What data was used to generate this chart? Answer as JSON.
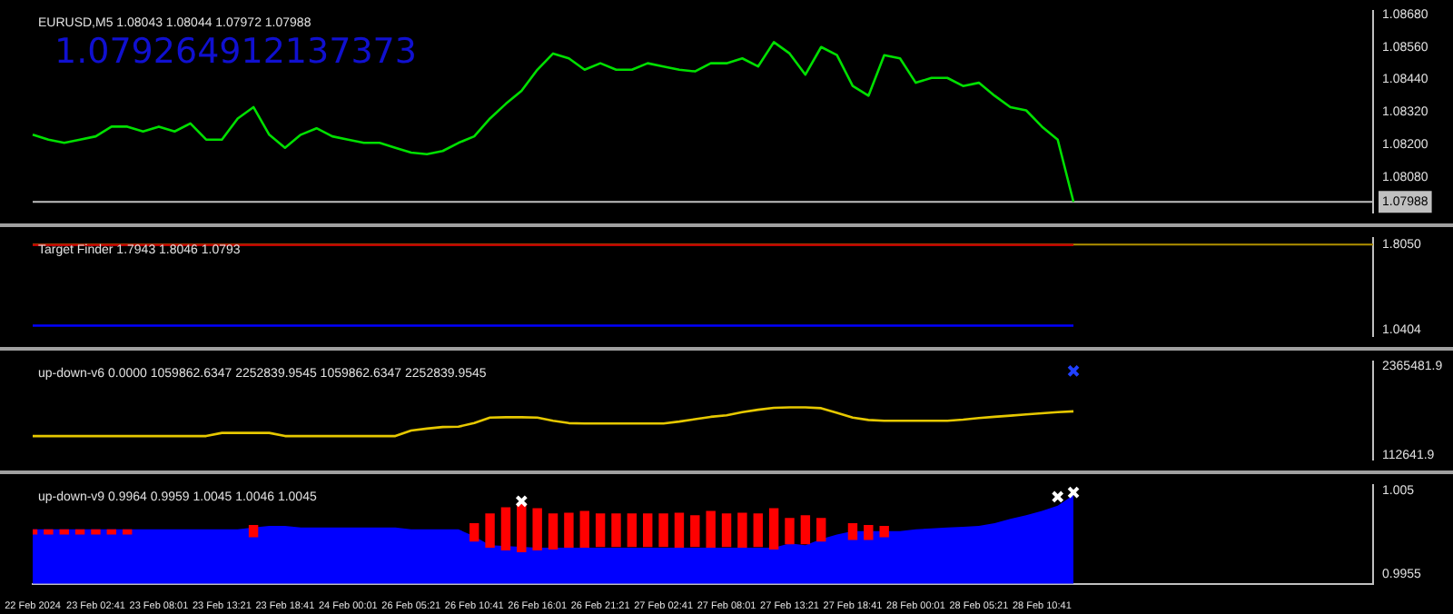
{
  "chart_data": [
    {
      "type": "line",
      "title": "EURUSD,M5 1.08043 1.08044 1.07972 1.07988",
      "annotations": [
        "1.079264912137373"
      ],
      "tick_labels": "y",
      "categories": [
        null,
        null,
        null,
        null,
        null,
        null,
        null,
        null,
        null,
        null,
        null,
        null,
        null,
        null,
        null,
        null,
        null,
        null,
        null,
        null,
        null,
        null,
        null,
        null,
        null,
        null,
        null,
        null,
        null,
        null,
        null,
        null,
        null,
        null,
        null,
        null,
        null,
        null,
        null,
        null,
        null,
        null,
        null,
        null,
        null,
        null,
        null,
        null,
        null,
        null,
        null,
        null,
        null,
        null,
        null,
        null,
        null,
        null,
        null,
        null,
        null,
        null,
        null,
        null,
        null,
        null,
        null,
        null,
        null,
        null,
        null,
        null,
        null,
        null,
        null,
        null,
        null,
        null,
        null,
        null,
        null,
        null,
        null,
        null,
        null,
        null
      ],
      "series": [
        {
          "color": "#00e000",
          "values": [
            1.08236,
            1.08218,
            1.08206,
            1.08218,
            1.0823,
            1.08266,
            1.08266,
            1.08248,
            1.08266,
            1.08248,
            1.08278,
            1.08218,
            1.08218,
            1.08296,
            1.08338,
            1.08236,
            1.08188,
            1.08236,
            1.0826,
            1.0823,
            1.08218,
            1.08206,
            1.08206,
            1.08188,
            1.0817,
            1.08164,
            1.08176,
            1.08206,
            1.0823,
            1.08296,
            1.0835,
            1.08398,
            1.08476,
            1.08536,
            1.08518,
            1.08476,
            1.085,
            1.08476,
            1.08476,
            1.085,
            1.08488,
            1.08476,
            1.0847,
            1.085,
            1.085,
            1.08518,
            1.08488,
            1.08578,
            1.08536,
            1.08458,
            1.0856,
            1.0853,
            1.08416,
            1.0838,
            1.0853,
            1.08518,
            1.08428,
            1.08446,
            1.08446,
            1.08416,
            1.08428,
            1.0838,
            1.08338,
            1.08326,
            1.08266,
            1.08218,
            1.07988,
            null,
            null,
            null,
            null,
            null,
            null,
            null,
            null,
            null,
            null,
            null,
            null,
            null,
            null,
            null,
            null,
            null,
            null,
            null
          ]
        }
      ],
      "ylim": [
        1.0795,
        1.08692
      ],
      "yticks": [
        {
          "value": 1.0808,
          "label": "1.08080"
        },
        {
          "value": 1.082,
          "label": "1.08200"
        },
        {
          "value": 1.0832,
          "label": "1.08320"
        },
        {
          "value": 1.0844,
          "label": "1.08440"
        },
        {
          "value": 1.0856,
          "label": "1.08560"
        },
        {
          "value": 1.0868,
          "label": "1.08680"
        }
      ],
      "ref_lines": [
        {
          "axis": "y",
          "value": 1.07988,
          "label": "1.07988",
          "color": "#c0c0c0"
        }
      ]
    },
    {
      "type": "line",
      "title": "Target Finder 1.7943 1.8046 1.0793",
      "tick_labels": "y",
      "categories": [
        null,
        null,
        null,
        null,
        null,
        null,
        null,
        null,
        null,
        null,
        null,
        null,
        null,
        null,
        null,
        null,
        null,
        null,
        null,
        null,
        null,
        null,
        null,
        null,
        null,
        null,
        null,
        null,
        null,
        null,
        null,
        null,
        null,
        null,
        null,
        null,
        null,
        null,
        null,
        null,
        null,
        null,
        null,
        null,
        null,
        null,
        null,
        null,
        null,
        null,
        null,
        null,
        null,
        null,
        null,
        null,
        null,
        null,
        null,
        null,
        null,
        null,
        null,
        null,
        null,
        null,
        null,
        null,
        null,
        null,
        null,
        null,
        null,
        null,
        null,
        null,
        null,
        null,
        null,
        null,
        null,
        null,
        null,
        null,
        null,
        null
      ],
      "series": [
        {
          "color": "#c00000",
          "values": [
            1.8,
            1.8,
            1.8,
            1.8,
            1.8,
            1.8,
            1.8,
            1.8,
            1.8,
            1.8,
            1.8,
            1.8,
            1.8,
            1.8,
            1.8,
            1.8,
            1.8,
            1.8,
            1.8,
            1.8,
            1.8,
            1.8,
            1.8,
            1.8,
            1.8,
            1.8,
            1.8,
            1.8,
            1.8,
            1.8,
            1.8,
            1.8,
            1.8,
            1.8,
            1.8,
            1.8,
            1.8,
            1.8,
            1.8,
            1.8,
            1.8,
            1.8,
            1.8,
            1.8,
            1.8,
            1.8,
            1.8,
            1.8,
            1.8,
            1.8,
            1.8,
            1.8,
            1.8,
            1.8,
            1.8,
            1.8,
            1.8,
            1.8,
            1.8,
            1.8,
            1.8,
            1.8,
            1.8,
            1.8,
            1.8,
            1.8,
            1.8,
            null,
            null,
            null,
            null,
            null,
            null,
            null,
            null,
            null,
            null,
            null,
            null,
            null,
            null,
            null,
            null,
            null,
            null,
            null
          ]
        },
        {
          "color": "#0000ff",
          "values": [
            1.08,
            1.08,
            1.08,
            1.08,
            1.08,
            1.08,
            1.08,
            1.08,
            1.08,
            1.08,
            1.08,
            1.08,
            1.08,
            1.08,
            1.08,
            1.08,
            1.08,
            1.08,
            1.08,
            1.08,
            1.08,
            1.08,
            1.08,
            1.08,
            1.08,
            1.08,
            1.08,
            1.08,
            1.08,
            1.08,
            1.08,
            1.08,
            1.08,
            1.08,
            1.08,
            1.08,
            1.08,
            1.08,
            1.08,
            1.08,
            1.08,
            1.08,
            1.08,
            1.08,
            1.08,
            1.08,
            1.08,
            1.08,
            1.08,
            1.08,
            1.08,
            1.08,
            1.08,
            1.08,
            1.08,
            1.08,
            1.08,
            1.08,
            1.08,
            1.08,
            1.08,
            1.08,
            1.08,
            1.08,
            1.08,
            1.08,
            1.08,
            null,
            null,
            null,
            null,
            null,
            null,
            null,
            null,
            null,
            null,
            null,
            null,
            null,
            null,
            null,
            null,
            null,
            null,
            null
          ]
        }
      ],
      "ylim": [
        0.99,
        1.86
      ],
      "yticks": [
        1.0404,
        {
          "value": 1.805,
          "label": "1.8050"
        }
      ],
      "ref_lines": [
        {
          "axis": "y",
          "value": 1.805,
          "color": "#b09000"
        }
      ]
    },
    {
      "type": "line",
      "title": "up-down-v6 0.0000 1059862.6347 2252839.9545 1059862.6347 2252839.9545",
      "tick_labels": "y",
      "categories": [
        null,
        null,
        null,
        null,
        null,
        null,
        null,
        null,
        null,
        null,
        null,
        null,
        null,
        null,
        null,
        null,
        null,
        null,
        null,
        null,
        null,
        null,
        null,
        null,
        null,
        null,
        null,
        null,
        null,
        null,
        null,
        null,
        null,
        null,
        null,
        null,
        null,
        null,
        null,
        null,
        null,
        null,
        null,
        null,
        null,
        null,
        null,
        null,
        null,
        null,
        null,
        null,
        null,
        null,
        null,
        null,
        null,
        null,
        null,
        null,
        null,
        null,
        null,
        null,
        null,
        null,
        null,
        null,
        null,
        null,
        null,
        null,
        null,
        null,
        null,
        null,
        null,
        null,
        null,
        null,
        null,
        null,
        null,
        null,
        null,
        null
      ],
      "series": [
        {
          "color": "#e6c800",
          "values": [
            590000,
            590000,
            590000,
            590000,
            590000,
            590000,
            590000,
            590000,
            590000,
            590000,
            590000,
            590000,
            670000,
            670000,
            670000,
            670000,
            590000,
            590000,
            590000,
            590000,
            590000,
            590000,
            590000,
            590000,
            730000,
            780000,
            820000,
            830000,
            920000,
            1060000,
            1070000,
            1070000,
            1060000,
            980000,
            920000,
            910000,
            910000,
            910000,
            910000,
            910000,
            910000,
            960000,
            1020000,
            1080000,
            1120000,
            1200000,
            1260000,
            1310000,
            1320000,
            1320000,
            1300000,
            1180000,
            1060000,
            1000000,
            980000,
            980000,
            980000,
            980000,
            980000,
            1010000,
            1050000,
            1080000,
            1110000,
            1140000,
            1170000,
            1200000,
            1220000,
            null,
            null,
            null,
            null,
            null,
            null,
            null,
            null,
            null,
            null,
            null,
            null,
            null,
            null,
            null,
            null,
            null,
            null,
            null
          ]
        },
        {
          "type": "scatter",
          "marker": "cross",
          "color": "#2040ff",
          "values": [
            null,
            null,
            null,
            null,
            null,
            null,
            null,
            null,
            null,
            null,
            null,
            null,
            null,
            null,
            null,
            null,
            null,
            null,
            null,
            null,
            null,
            null,
            null,
            null,
            null,
            null,
            null,
            null,
            null,
            null,
            null,
            null,
            null,
            null,
            null,
            null,
            null,
            null,
            null,
            null,
            null,
            null,
            null,
            null,
            null,
            null,
            null,
            null,
            null,
            null,
            null,
            null,
            null,
            null,
            null,
            null,
            null,
            null,
            null,
            null,
            null,
            null,
            null,
            null,
            null,
            null,
            2250000,
            null,
            null,
            null,
            null,
            null,
            null,
            null,
            null,
            null,
            null,
            null,
            null,
            null,
            null,
            null,
            null,
            null,
            null,
            null
          ]
        }
      ],
      "ylim": [
        0,
        2480000
      ],
      "yticks": [
        112641.9,
        2365481.9
      ]
    },
    {
      "type": "area",
      "title": "up-down-v9 0.9964 0.9959 1.0045 1.0046 1.0045",
      "categories": [
        "22 Feb 2024",
        null,
        null,
        null,
        "23 Feb 02:41",
        null,
        null,
        null,
        "23 Feb 08:01",
        null,
        null,
        null,
        "23 Feb 13:21",
        null,
        null,
        null,
        "23 Feb 18:41",
        null,
        null,
        null,
        "24 Feb 00:01",
        null,
        null,
        null,
        "26 Feb 05:21",
        null,
        null,
        null,
        "26 Feb 10:41",
        null,
        null,
        null,
        "26 Feb 16:01",
        null,
        null,
        null,
        "26 Feb 21:21",
        null,
        null,
        null,
        "27 Feb 02:41",
        null,
        null,
        null,
        "27 Feb 08:01",
        null,
        null,
        null,
        "27 Feb 13:21",
        null,
        null,
        null,
        "27 Feb 18:41",
        null,
        null,
        null,
        "28 Feb 00:01",
        null,
        null,
        null,
        "28 Feb 05:21",
        null,
        null,
        null,
        "28 Feb 10:41",
        null,
        null,
        null,
        null,
        null,
        null,
        null,
        null,
        null,
        null,
        null,
        null,
        null,
        null,
        null,
        null,
        null,
        null,
        null,
        null,
        null
      ],
      "series": [
        {
          "color": "#0000ff",
          "values": [
            1.0006,
            1.0006,
            1.0006,
            1.0006,
            1.0006,
            1.0006,
            1.0006,
            1.0006,
            1.0006,
            1.0006,
            1.0006,
            1.0006,
            1.0006,
            1.0006,
            1.0008,
            1.001,
            1.001,
            1.0008,
            1.0008,
            1.0008,
            1.0008,
            1.0008,
            1.0008,
            1.0008,
            1.0006,
            1.0006,
            1.0006,
            1.0006,
            0.9998,
            0.9988,
            null,
            null,
            0.9985,
            0.9985,
            0.9985,
            0.9985,
            0.9985,
            0.9985,
            0.9985,
            0.9985,
            0.9985,
            0.9985,
            0.9985,
            0.9985,
            0.9985,
            0.9985,
            0.9985,
            0.9985,
            0.999,
            0.9988,
            0.9995,
            1.0,
            1.0004,
            1.0004,
            1.0004,
            1.0004,
            1.0006,
            1.0007,
            1.0008,
            1.0009,
            1.001,
            1.0013,
            1.0018,
            1.0022,
            1.0027,
            1.0033,
            1.0045,
            null,
            null,
            null,
            null,
            null,
            null,
            null,
            null,
            null,
            null,
            null,
            null,
            null,
            null,
            null,
            null,
            null,
            null,
            null
          ]
        },
        {
          "type": "bar",
          "color": "#ff0000",
          "values": [
            0.0006,
            0.0006,
            0.0006,
            0.0006,
            0.0006,
            0.0006,
            0.0006,
            null,
            null,
            null,
            null,
            null,
            null,
            null,
            0.0014,
            null,
            null,
            null,
            null,
            null,
            null,
            null,
            null,
            null,
            null,
            null,
            null,
            null,
            0.0021,
            0.0039,
            0.0049,
            0.0056,
            0.0048,
            0.0041,
            0.004,
            0.0042,
            0.0038,
            0.0038,
            0.0038,
            0.0038,
            0.0038,
            0.004,
            0.0036,
            0.0042,
            0.0038,
            0.004,
            0.0038,
            0.0047,
            0.003,
            0.0033,
            0.0027,
            null,
            0.0019,
            0.0017,
            0.0013,
            null,
            null,
            null,
            null,
            null,
            null,
            null,
            null,
            null,
            null,
            null,
            null,
            null,
            null,
            null,
            null,
            null,
            null,
            null,
            null,
            null,
            null,
            null,
            null,
            null,
            null,
            null,
            null,
            null,
            null,
            null
          ],
          "base": [
            1.0,
            1.0,
            1.0,
            1.0,
            1.0,
            1.0,
            1.0,
            null,
            null,
            null,
            null,
            null,
            null,
            null,
            0.9997,
            null,
            null,
            null,
            null,
            null,
            null,
            null,
            null,
            null,
            null,
            null,
            null,
            null,
            0.9992,
            0.9985,
            0.9982,
            0.998,
            0.9982,
            0.9983,
            0.9985,
            0.9985,
            0.9986,
            0.9986,
            0.9986,
            0.9986,
            0.9986,
            0.9985,
            0.9986,
            0.9985,
            0.9986,
            0.9985,
            0.9986,
            0.9983,
            0.9989,
            0.9989,
            0.9992,
            null,
            0.9994,
            0.9994,
            0.9997,
            null,
            null,
            null,
            null,
            null,
            null,
            null,
            null,
            null,
            null,
            null,
            null,
            null,
            null,
            null,
            null,
            null,
            null,
            null,
            null,
            null,
            null,
            null,
            null,
            null,
            null,
            null,
            null,
            null,
            null,
            null
          ]
        },
        {
          "type": "scatter",
          "marker": "cross",
          "color": "#ffffff",
          "values": [
            null,
            null,
            null,
            null,
            null,
            null,
            null,
            null,
            null,
            null,
            null,
            null,
            null,
            null,
            null,
            null,
            null,
            null,
            null,
            null,
            null,
            null,
            null,
            null,
            null,
            null,
            null,
            null,
            null,
            null,
            null,
            1.0038,
            null,
            null,
            null,
            null,
            null,
            null,
            null,
            null,
            null,
            null,
            null,
            null,
            null,
            null,
            null,
            null,
            null,
            null,
            null,
            null,
            null,
            null,
            null,
            null,
            null,
            null,
            null,
            null,
            null,
            null,
            null,
            null,
            null,
            1.0043,
            1.0048,
            null,
            null,
            null,
            null,
            null,
            null,
            null,
            null,
            null,
            null,
            null,
            null,
            null,
            null,
            null,
            null,
            null,
            null,
            null
          ]
        }
      ],
      "ylim": [
        0.9944,
        1.0056
      ],
      "yticks": [
        0.9955,
        1.005
      ]
    }
  ]
}
